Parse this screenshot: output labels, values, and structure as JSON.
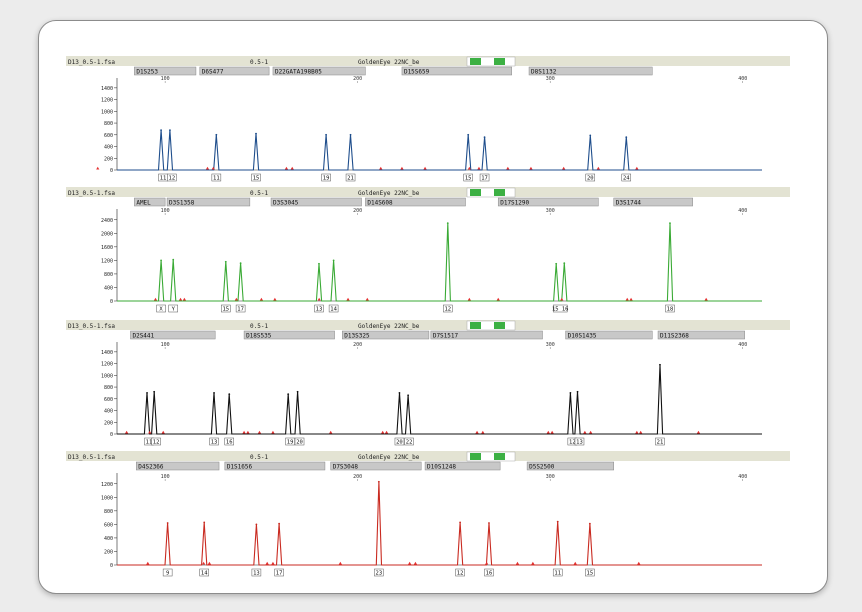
{
  "colors": {
    "header_bg": "#e3e3d3",
    "locus_box": "#c8c8c8",
    "toggle_on": "#3cb043",
    "peak_marker": "#e53030"
  },
  "chart_data": [
    {
      "type": "line",
      "file": "D13_0.5-1.fsa",
      "mix": "0.5-1",
      "kit": "GoldenEye 22NC_be",
      "color": "#1f4e8c",
      "x_ticks": [
        100,
        200,
        300,
        400
      ],
      "y_ticks": [
        0,
        200,
        400,
        600,
        800,
        1000,
        1200,
        1400
      ],
      "ylim": [
        0,
        1500
      ],
      "xlim": [
        75,
        410
      ],
      "loci": [
        {
          "name": "D1S253",
          "x0": 84,
          "x1": 116
        },
        {
          "name": "D6S477",
          "x0": 118,
          "x1": 154
        },
        {
          "name": "D22GATA198B05",
          "x0": 156,
          "x1": 204
        },
        {
          "name": "D15S659",
          "x0": 223,
          "x1": 280
        },
        {
          "name": "D8S1132",
          "x0": 289,
          "x1": 353
        }
      ],
      "peaks": [
        {
          "x": 97.9,
          "y": 680
        },
        {
          "x": 102.5,
          "y": 680
        },
        {
          "x": 126.6,
          "y": 600
        },
        {
          "x": 147.2,
          "y": 620
        },
        {
          "x": 183.6,
          "y": 600
        },
        {
          "x": 196.3,
          "y": 600
        },
        {
          "x": 257.4,
          "y": 600
        },
        {
          "x": 265.9,
          "y": 560
        },
        {
          "x": 320.8,
          "y": 590
        },
        {
          "x": 339.5,
          "y": 560
        }
      ],
      "alleles": [
        {
          "x": 98.9,
          "label": "11"
        },
        {
          "x": 103.5,
          "label": "12"
        },
        {
          "x": 126.6,
          "label": "11"
        },
        {
          "x": 147.2,
          "label": "15"
        },
        {
          "x": 183.6,
          "label": "19"
        },
        {
          "x": 196.3,
          "label": "21"
        },
        {
          "x": 257.4,
          "label": "15"
        },
        {
          "x": 265.9,
          "label": "17"
        },
        {
          "x": 320.8,
          "label": "20"
        },
        {
          "x": 339.5,
          "label": "24"
        }
      ],
      "markers": [
        65,
        122,
        125,
        163,
        166,
        212,
        223,
        235,
        258,
        263,
        278,
        290,
        307,
        325,
        345
      ]
    },
    {
      "type": "line",
      "file": "D13_0.5-1.fsa",
      "mix": "0.5-1",
      "kit": "GoldenEye 22NC_be",
      "color": "#3aaa35",
      "x_ticks": [
        100,
        200,
        300,
        400
      ],
      "y_ticks": [
        0,
        400,
        800,
        1200,
        1600,
        2000,
        2400
      ],
      "ylim": [
        0,
        2600
      ],
      "xlim": [
        75,
        410
      ],
      "loci": [
        {
          "name": "AMEL",
          "x0": 84,
          "x1": 100
        },
        {
          "name": "D3S1358",
          "x0": 101,
          "x1": 144
        },
        {
          "name": "D3S3045",
          "x0": 155,
          "x1": 202
        },
        {
          "name": "D14S608",
          "x0": 204,
          "x1": 256
        },
        {
          "name": "D17S1290",
          "x0": 273,
          "x1": 325
        },
        {
          "name": "D3S1744",
          "x0": 333,
          "x1": 374
        }
      ],
      "peaks": [
        {
          "x": 97.9,
          "y": 1200
        },
        {
          "x": 104.2,
          "y": 1220
        },
        {
          "x": 131.5,
          "y": 1160
        },
        {
          "x": 139.2,
          "y": 1120
        },
        {
          "x": 179.9,
          "y": 1100
        },
        {
          "x": 187.5,
          "y": 1200
        },
        {
          "x": 246.8,
          "y": 2300
        },
        {
          "x": 303.1,
          "y": 1100
        },
        {
          "x": 307.3,
          "y": 1120
        },
        {
          "x": 362.2,
          "y": 2300
        }
      ],
      "alleles": [
        {
          "x": 97.9,
          "label": "X"
        },
        {
          "x": 104.2,
          "label": "Y"
        },
        {
          "x": 131.5,
          "label": "15"
        },
        {
          "x": 139.2,
          "label": "17"
        },
        {
          "x": 179.9,
          "label": "13"
        },
        {
          "x": 187.5,
          "label": "14"
        },
        {
          "x": 246.8,
          "label": "12"
        },
        {
          "x": 305.2,
          "label": "15 16"
        },
        {
          "x": 362.2,
          "label": "18"
        }
      ],
      "markers": [
        95,
        108,
        110,
        137,
        150,
        157,
        180,
        195,
        205,
        258,
        273,
        306,
        340,
        342,
        381
      ]
    },
    {
      "type": "line",
      "file": "D13_0.5-1.fsa",
      "mix": "0.5-1",
      "kit": "GoldenEye 22NC_be",
      "color": "#111111",
      "x_ticks": [
        100,
        200,
        300,
        400
      ],
      "y_ticks": [
        0,
        200,
        400,
        600,
        800,
        1000,
        1200,
        1400
      ],
      "ylim": [
        0,
        1500
      ],
      "xlim": [
        75,
        410
      ],
      "loci": [
        {
          "name": "D2S441",
          "x0": 82,
          "x1": 126
        },
        {
          "name": "D18S535",
          "x0": 141,
          "x1": 188
        },
        {
          "name": "D13S325",
          "x0": 192,
          "x1": 237
        },
        {
          "name": "D7S1517",
          "x0": 238,
          "x1": 296
        },
        {
          "name": "D10S1435",
          "x0": 308,
          "x1": 353
        },
        {
          "name": "D11S2368",
          "x0": 356,
          "x1": 401
        }
      ],
      "peaks": [
        {
          "x": 90.6,
          "y": 700
        },
        {
          "x": 94.3,
          "y": 720
        },
        {
          "x": 125.4,
          "y": 700
        },
        {
          "x": 133.3,
          "y": 680
        },
        {
          "x": 163.9,
          "y": 680
        },
        {
          "x": 168.8,
          "y": 720
        },
        {
          "x": 221.7,
          "y": 700
        },
        {
          "x": 226.2,
          "y": 660
        },
        {
          "x": 310.5,
          "y": 700
        },
        {
          "x": 314.2,
          "y": 720
        },
        {
          "x": 357.0,
          "y": 1180
        }
      ],
      "alleles": [
        {
          "x": 91.6,
          "label": "11"
        },
        {
          "x": 95.3,
          "label": "12"
        },
        {
          "x": 125.4,
          "label": "13"
        },
        {
          "x": 133.3,
          "label": "16"
        },
        {
          "x": 164.9,
          "label": "19"
        },
        {
          "x": 169.8,
          "label": "20"
        },
        {
          "x": 221.7,
          "label": "20"
        },
        {
          "x": 226.7,
          "label": "22"
        },
        {
          "x": 311.5,
          "label": "12"
        },
        {
          "x": 315.2,
          "label": "13"
        },
        {
          "x": 357.0,
          "label": "21"
        }
      ],
      "markers": [
        80,
        92,
        99,
        141,
        143,
        149,
        156,
        186,
        213,
        215,
        262,
        265,
        299,
        301,
        318,
        321,
        345,
        347,
        377
      ]
    },
    {
      "type": "line",
      "file": "D13_0.5-1.fsa",
      "mix": "0.5-1",
      "kit": "GoldenEye 22NC_be",
      "color": "#c92a20",
      "x_ticks": [
        100,
        200,
        300,
        400
      ],
      "y_ticks": [
        0,
        200,
        400,
        600,
        800,
        1000,
        1200
      ],
      "ylim": [
        0,
        1300
      ],
      "xlim": [
        75,
        410
      ],
      "loci": [
        {
          "name": "D4S2366",
          "x0": 85,
          "x1": 128
        },
        {
          "name": "D1S1656",
          "x0": 131,
          "x1": 183
        },
        {
          "name": "D7S3048",
          "x0": 186,
          "x1": 233
        },
        {
          "name": "D10S1248",
          "x0": 235,
          "x1": 274
        },
        {
          "name": "D5S2500",
          "x0": 288,
          "x1": 333
        }
      ],
      "peaks": [
        {
          "x": 101.3,
          "y": 620
        },
        {
          "x": 120.3,
          "y": 630
        },
        {
          "x": 147.4,
          "y": 600
        },
        {
          "x": 159.2,
          "y": 610
        },
        {
          "x": 211.0,
          "y": 1230
        },
        {
          "x": 253.2,
          "y": 630
        },
        {
          "x": 268.2,
          "y": 620
        },
        {
          "x": 303.9,
          "y": 640
        },
        {
          "x": 320.6,
          "y": 610
        }
      ],
      "alleles": [
        {
          "x": 101.3,
          "label": "9"
        },
        {
          "x": 120.3,
          "label": "14"
        },
        {
          "x": 147.4,
          "label": "13"
        },
        {
          "x": 159.2,
          "label": "17"
        },
        {
          "x": 211.0,
          "label": "23"
        },
        {
          "x": 253.2,
          "label": "12"
        },
        {
          "x": 268.2,
          "label": "16"
        },
        {
          "x": 303.9,
          "label": "11"
        },
        {
          "x": 320.6,
          "label": "15"
        }
      ],
      "markers": [
        91,
        120,
        123,
        153,
        156,
        191,
        227,
        230,
        267,
        283,
        291,
        313,
        346
      ]
    }
  ]
}
